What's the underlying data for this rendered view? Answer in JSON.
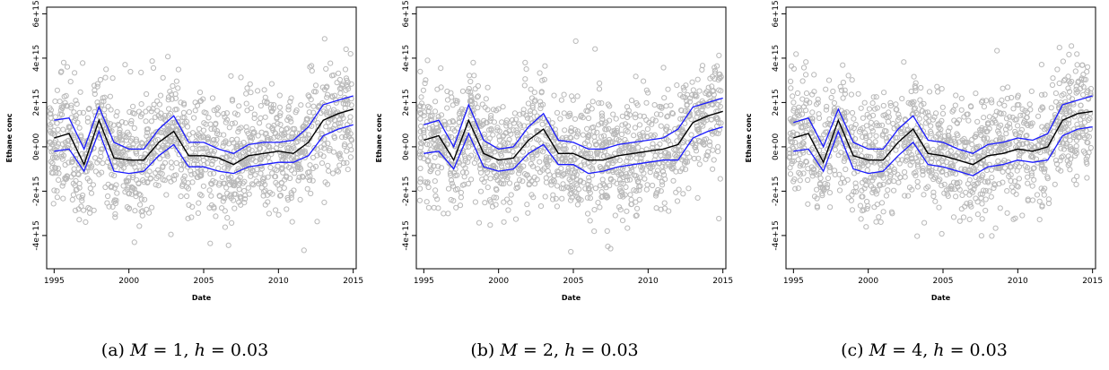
{
  "chart_data": [
    {
      "type": "scatter",
      "caption": {
        "tag": "(a)",
        "M": "1",
        "h": "0.03"
      },
      "xlabel": "Date",
      "ylabel": "Ethane conc",
      "xlim": [
        1994.5,
        2015.2
      ],
      "ylim": [
        -5500000000000000.0,
        6300000000000000.0
      ],
      "xticks": [
        1995,
        2000,
        2005,
        2010,
        2015
      ],
      "xtick_labels": [
        "1995",
        "2000",
        "2005",
        "2010",
        "2015"
      ],
      "yticks": [
        -4000000000000000.0,
        -2000000000000000.0,
        0,
        2000000000000000.0,
        4000000000000000.0,
        6000000000000000.0
      ],
      "ytick_labels": [
        "-4e+15",
        "-2e+15",
        "0e+00",
        "2e+15",
        "4e+15",
        "6e+15"
      ],
      "scatter_color": "#b9b9b9",
      "band_color": "#1a1aff",
      "mean_color": "#000000",
      "series": [
        {
          "x": [
            1995,
            1996,
            1997,
            1998,
            1999,
            2000,
            2001,
            2002,
            2003,
            2004,
            2005,
            2006,
            2007,
            2008,
            2009,
            2010,
            2011,
            2012,
            2013,
            2014,
            2015
          ],
          "mean": [
            0.4,
            0.6,
            -0.8,
            1.2,
            -0.5,
            -0.6,
            -0.6,
            0.2,
            0.7,
            -0.4,
            -0.4,
            -0.5,
            -0.8,
            -0.4,
            -0.3,
            -0.2,
            -0.3,
            0.2,
            1.2,
            1.5,
            1.7
          ]
        },
        {
          "x": [
            1995,
            1996,
            1997,
            1998,
            1999,
            2000,
            2001,
            2002,
            2003,
            2004,
            2005,
            2006,
            2007,
            2008,
            2009,
            2010,
            2011,
            2012,
            2013,
            2014,
            2015
          ],
          "upper": [
            1.2,
            1.3,
            -0.1,
            1.8,
            0.2,
            -0.1,
            -0.1,
            0.8,
            1.4,
            0.2,
            0.2,
            -0.1,
            -0.3,
            0.1,
            0.2,
            0.2,
            0.3,
            0.9,
            1.9,
            2.1,
            2.3
          ]
        },
        {
          "x": [
            1995,
            1996,
            1997,
            1998,
            1999,
            2000,
            2001,
            2002,
            2003,
            2004,
            2005,
            2006,
            2007,
            2008,
            2009,
            2010,
            2011,
            2012,
            2013,
            2014,
            2015
          ],
          "lower": [
            -0.2,
            -0.1,
            -1.1,
            0.7,
            -1.1,
            -1.2,
            -1.1,
            -0.4,
            0.1,
            -0.9,
            -0.9,
            -1.1,
            -1.2,
            -0.9,
            -0.8,
            -0.7,
            -0.7,
            -0.4,
            0.5,
            0.8,
            1.0
          ]
        }
      ]
    },
    {
      "type": "scatter",
      "caption": {
        "tag": "(b)",
        "M": "2",
        "h": "0.03"
      },
      "xlabel": "Date",
      "ylabel": "Ethane conc",
      "xlim": [
        1994.5,
        2015.2
      ],
      "ylim": [
        -5500000000000000.0,
        6300000000000000.0
      ],
      "xticks": [
        1995,
        2000,
        2005,
        2010,
        2015
      ],
      "xtick_labels": [
        "1995",
        "2000",
        "2005",
        "2010",
        "2015"
      ],
      "yticks": [
        -4000000000000000.0,
        -2000000000000000.0,
        0,
        2000000000000000.0,
        4000000000000000.0,
        6000000000000000.0
      ],
      "ytick_labels": [
        "-4e+15",
        "-2e+15",
        "0e+00",
        "2e+15",
        "4e+15",
        "6e+15"
      ],
      "scatter_color": "#b9b9b9",
      "band_color": "#1a1aff",
      "mean_color": "#000000",
      "series": [
        {
          "x": [
            1995,
            1996,
            1997,
            1998,
            1999,
            2000,
            2001,
            2002,
            2003,
            2004,
            2005,
            2006,
            2007,
            2008,
            2009,
            2010,
            2011,
            2012,
            2013,
            2014,
            2015
          ],
          "mean": [
            0.3,
            0.5,
            -0.6,
            1.2,
            -0.3,
            -0.6,
            -0.5,
            0.3,
            0.8,
            -0.3,
            -0.3,
            -0.6,
            -0.6,
            -0.4,
            -0.3,
            -0.2,
            -0.1,
            0.1,
            1.1,
            1.4,
            1.6
          ]
        },
        {
          "x": [
            1995,
            1996,
            1997,
            1998,
            1999,
            2000,
            2001,
            2002,
            2003,
            2004,
            2005,
            2006,
            2007,
            2008,
            2009,
            2010,
            2011,
            2012,
            2013,
            2014,
            2015
          ],
          "upper": [
            1.0,
            1.2,
            0.0,
            1.9,
            0.3,
            -0.1,
            0.0,
            0.9,
            1.5,
            0.3,
            0.2,
            -0.1,
            -0.1,
            0.1,
            0.2,
            0.3,
            0.4,
            0.8,
            1.8,
            2.0,
            2.2
          ]
        },
        {
          "x": [
            1995,
            1996,
            1997,
            1998,
            1999,
            2000,
            2001,
            2002,
            2003,
            2004,
            2005,
            2006,
            2007,
            2008,
            2009,
            2010,
            2011,
            2012,
            2013,
            2014,
            2015
          ],
          "lower": [
            -0.3,
            -0.2,
            -1.0,
            0.6,
            -0.9,
            -1.1,
            -1.0,
            -0.3,
            0.1,
            -0.8,
            -0.8,
            -1.2,
            -1.1,
            -0.9,
            -0.8,
            -0.7,
            -0.6,
            -0.6,
            0.4,
            0.7,
            0.9
          ]
        }
      ]
    },
    {
      "type": "scatter",
      "caption": {
        "tag": "(c)",
        "M": "4",
        "h": "0.03"
      },
      "xlabel": "Date",
      "ylabel": "Ethane conc",
      "xlim": [
        1994.5,
        2015.2
      ],
      "ylim": [
        -5500000000000000.0,
        6300000000000000.0
      ],
      "xticks": [
        1995,
        2000,
        2005,
        2010,
        2015
      ],
      "xtick_labels": [
        "1995",
        "2000",
        "2005",
        "2010",
        "2015"
      ],
      "yticks": [
        -4000000000000000.0,
        -2000000000000000.0,
        0,
        2000000000000000.0,
        4000000000000000.0,
        6000000000000000.0
      ],
      "ytick_labels": [
        "-4e+15",
        "-2e+15",
        "0e+00",
        "2e+15",
        "4e+15",
        "6e+15"
      ],
      "scatter_color": "#b9b9b9",
      "band_color": "#1a1aff",
      "mean_color": "#000000",
      "series": [
        {
          "x": [
            1995,
            1996,
            1997,
            1998,
            1999,
            2000,
            2001,
            2002,
            2003,
            2004,
            2005,
            2006,
            2007,
            2008,
            2009,
            2010,
            2011,
            2012,
            2013,
            2014,
            2015
          ],
          "mean": [
            0.4,
            0.6,
            -0.7,
            1.2,
            -0.4,
            -0.6,
            -0.6,
            0.2,
            0.8,
            -0.3,
            -0.4,
            -0.6,
            -0.8,
            -0.4,
            -0.3,
            -0.1,
            -0.2,
            0.0,
            1.2,
            1.5,
            1.6
          ]
        },
        {
          "x": [
            1995,
            1996,
            1997,
            1998,
            1999,
            2000,
            2001,
            2002,
            2003,
            2004,
            2005,
            2006,
            2007,
            2008,
            2009,
            2010,
            2011,
            2012,
            2013,
            2014,
            2015
          ],
          "upper": [
            1.1,
            1.3,
            0.0,
            1.7,
            0.2,
            -0.1,
            -0.1,
            0.8,
            1.4,
            0.3,
            0.2,
            -0.1,
            -0.3,
            0.1,
            0.2,
            0.4,
            0.3,
            0.6,
            1.9,
            2.1,
            2.3
          ]
        },
        {
          "x": [
            1995,
            1996,
            1997,
            1998,
            1999,
            2000,
            2001,
            2002,
            2003,
            2004,
            2005,
            2006,
            2007,
            2008,
            2009,
            2010,
            2011,
            2012,
            2013,
            2014,
            2015
          ],
          "lower": [
            -0.2,
            -0.1,
            -1.1,
            0.7,
            -1.0,
            -1.2,
            -1.1,
            -0.4,
            0.2,
            -0.8,
            -0.9,
            -1.1,
            -1.3,
            -0.9,
            -0.8,
            -0.6,
            -0.7,
            -0.6,
            0.5,
            0.8,
            0.9
          ]
        }
      ]
    }
  ]
}
